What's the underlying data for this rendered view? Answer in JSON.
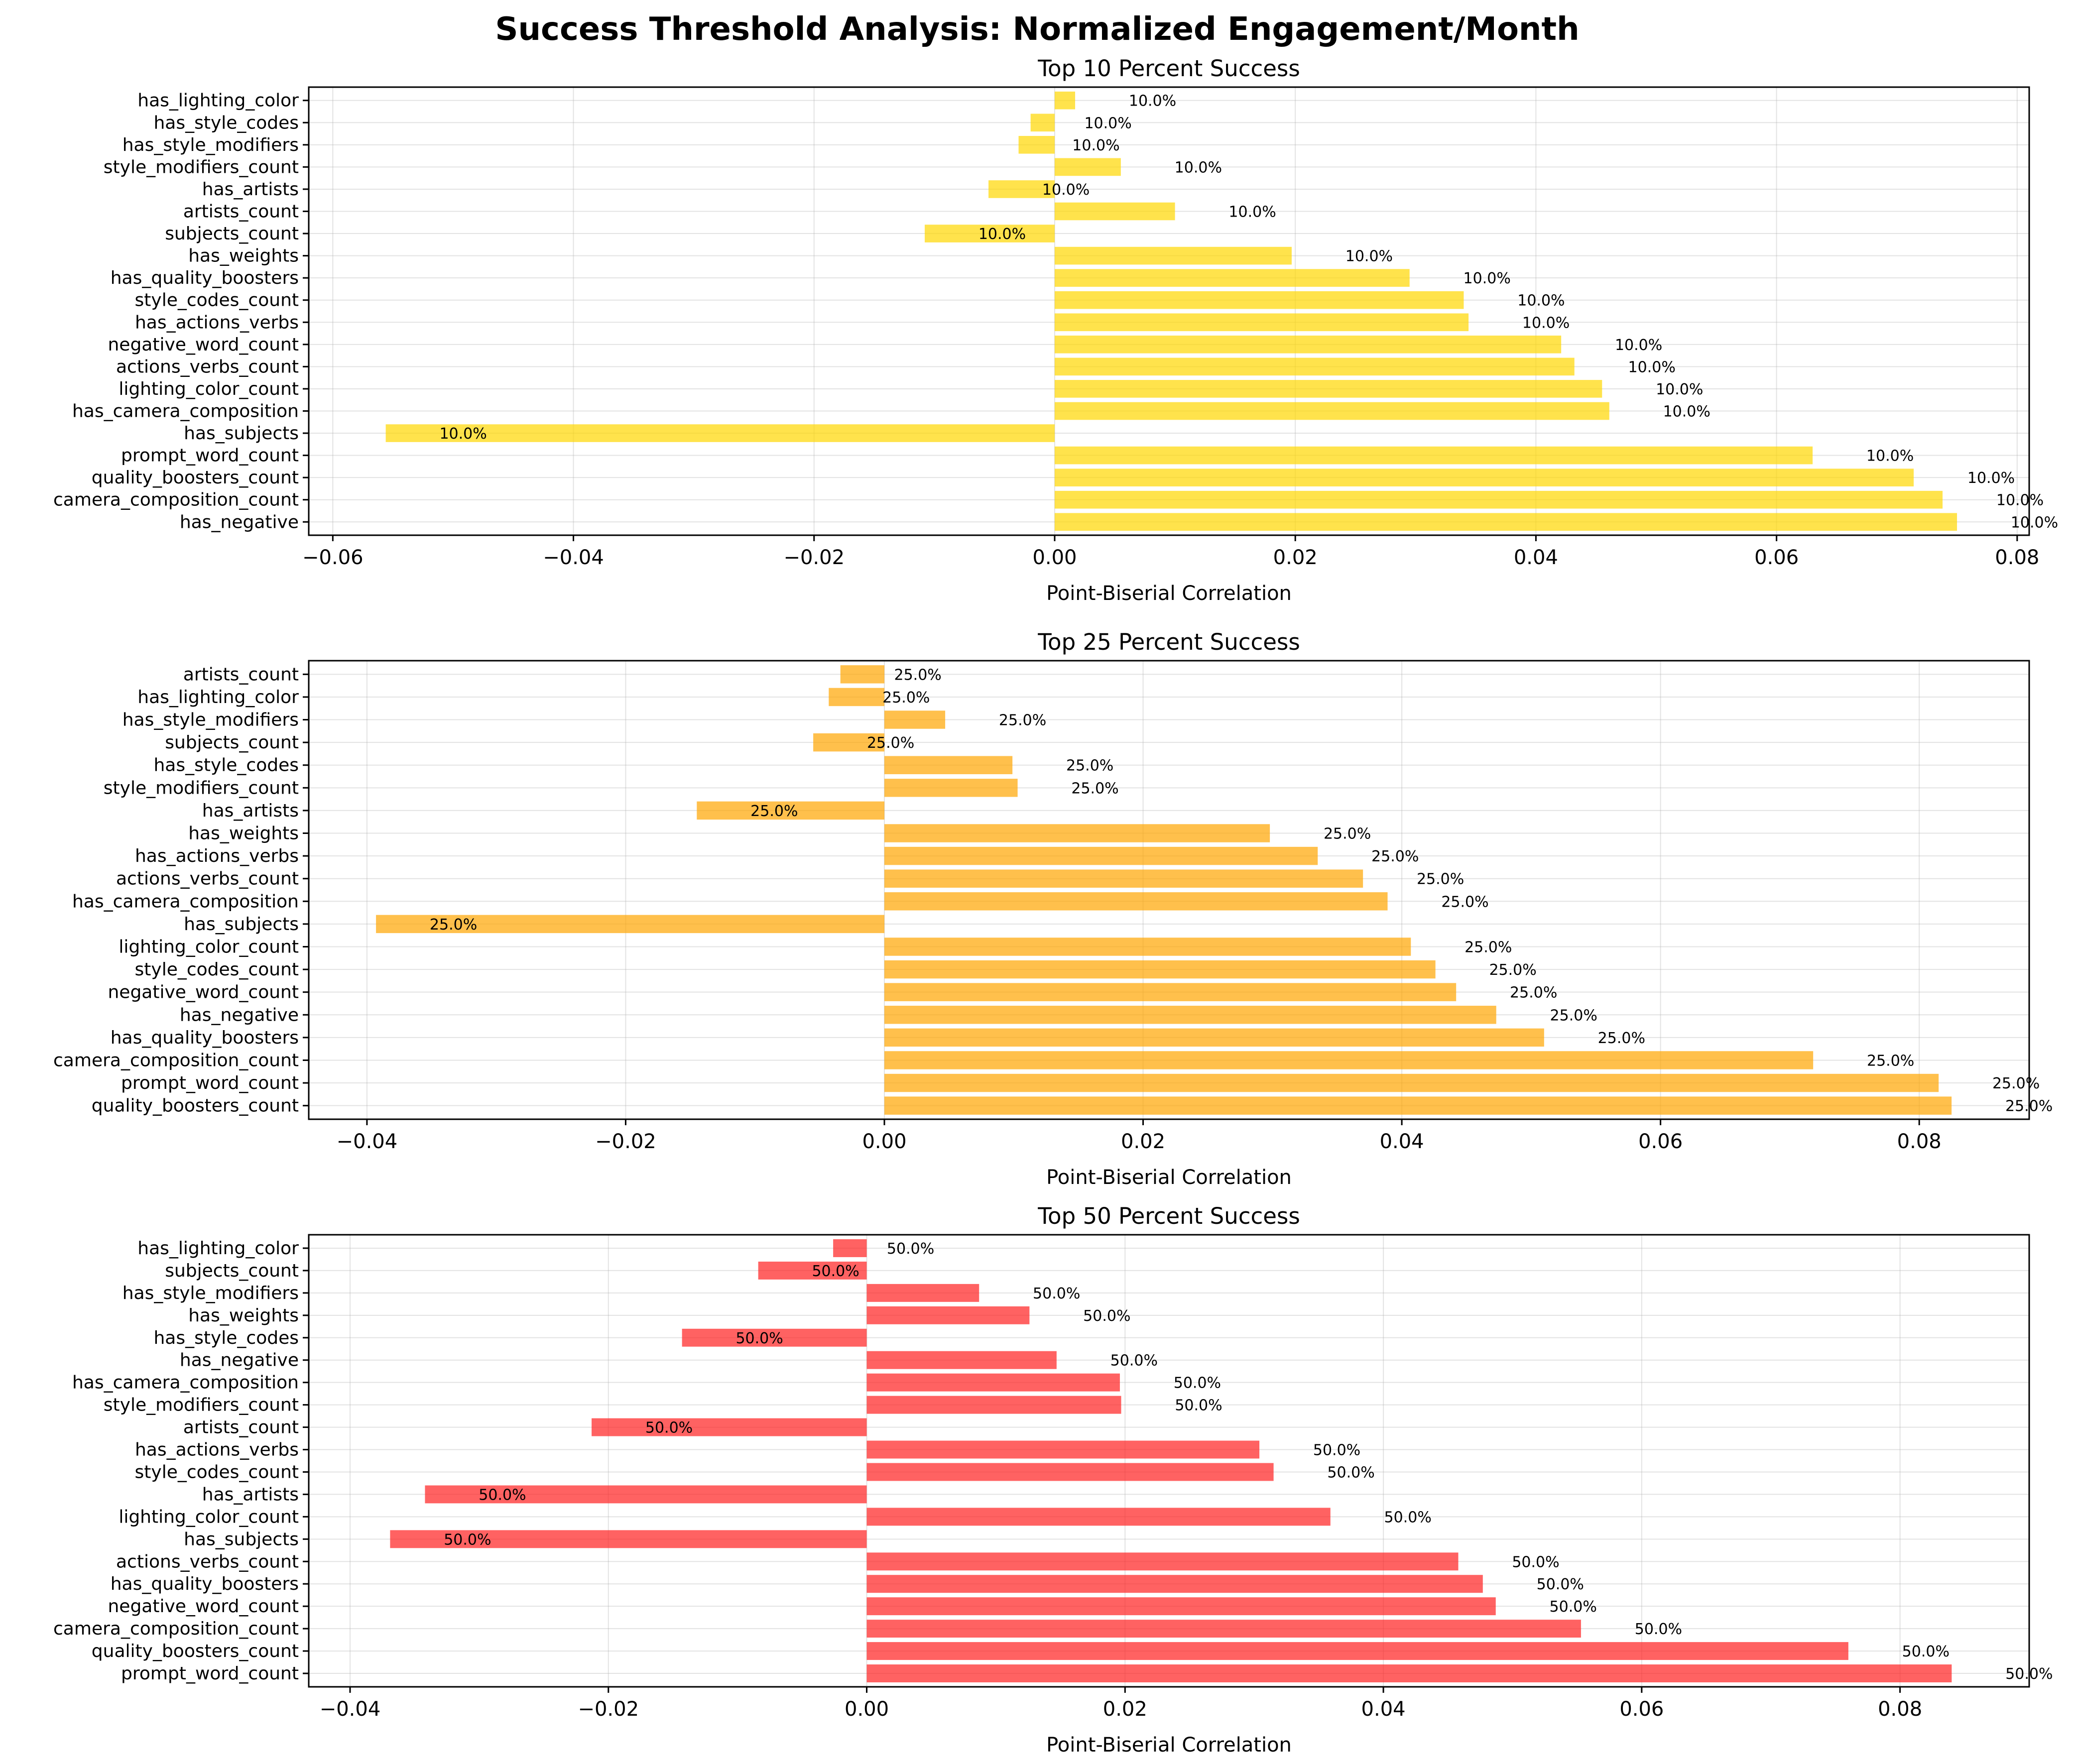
{
  "figure": {
    "title": "Success Threshold Analysis: Normalized Engagement/Month"
  },
  "chart_data": [
    {
      "type": "bar",
      "orientation": "horizontal",
      "title": "Top 10 Percent Success",
      "xlabel": "Point-Biserial Correlation",
      "ylabel": "",
      "xlim": [
        -0.062,
        0.081
      ],
      "xticks": [
        -0.06,
        -0.04,
        -0.02,
        0.0,
        0.02,
        0.04,
        0.06,
        0.08
      ],
      "xtick_labels": [
        "−0.06",
        "−0.04",
        "−0.02",
        "0.00",
        "0.02",
        "0.04",
        "0.06",
        "0.08"
      ],
      "grid": true,
      "color": "#FFD700",
      "categories": [
        "has_negative",
        "camera_composition_count",
        "quality_boosters_count",
        "prompt_word_count",
        "has_subjects",
        "has_camera_composition",
        "lighting_color_count",
        "actions_verbs_count",
        "negative_word_count",
        "has_actions_verbs",
        "style_codes_count",
        "has_quality_boosters",
        "has_weights",
        "subjects_count",
        "artists_count",
        "has_artists",
        "style_modifiers_count",
        "has_style_modifiers",
        "has_style_codes",
        "has_lighting_color"
      ],
      "values": [
        0.075,
        0.0738,
        0.0714,
        0.063,
        -0.0556,
        0.0461,
        0.0455,
        0.0432,
        0.0421,
        0.0344,
        0.034,
        0.0295,
        0.0197,
        -0.0108,
        0.01,
        -0.0055,
        0.0055,
        -0.003,
        -0.002,
        0.0017
      ],
      "data_labels": [
        "10.0%",
        "10.0%",
        "10.0%",
        "10.0%",
        "10.0%",
        "10.0%",
        "10.0%",
        "10.0%",
        "10.0%",
        "10.0%",
        "10.0%",
        "10.0%",
        "10.0%",
        "10.0%",
        "10.0%",
        "10.0%",
        "10.0%",
        "10.0%",
        "10.0%",
        "10.0%"
      ]
    },
    {
      "type": "bar",
      "orientation": "horizontal",
      "title": "Top 25 Percent Success",
      "xlabel": "Point-Biserial Correlation",
      "ylabel": "",
      "xlim": [
        -0.0445,
        0.0885
      ],
      "xticks": [
        -0.04,
        -0.02,
        0.0,
        0.02,
        0.04,
        0.06,
        0.08
      ],
      "xtick_labels": [
        "−0.04",
        "−0.02",
        "0.00",
        "0.02",
        "0.04",
        "0.06",
        "0.08"
      ],
      "grid": true,
      "color": "#FFA500",
      "categories": [
        "quality_boosters_count",
        "prompt_word_count",
        "camera_composition_count",
        "has_quality_boosters",
        "has_negative",
        "negative_word_count",
        "style_codes_count",
        "lighting_color_count",
        "has_subjects",
        "has_camera_composition",
        "actions_verbs_count",
        "has_actions_verbs",
        "has_weights",
        "has_artists",
        "style_modifiers_count",
        "has_style_codes",
        "subjects_count",
        "has_style_modifiers",
        "has_lighting_color",
        "artists_count"
      ],
      "values": [
        0.0825,
        0.0815,
        0.0718,
        0.051,
        0.0473,
        0.0442,
        0.0426,
        0.0407,
        -0.0393,
        0.0389,
        0.037,
        0.0335,
        0.0298,
        -0.0145,
        0.0103,
        0.0099,
        -0.0055,
        0.0047,
        -0.0043,
        -0.0034
      ],
      "data_labels": [
        "25.0%",
        "25.0%",
        "25.0%",
        "25.0%",
        "25.0%",
        "25.0%",
        "25.0%",
        "25.0%",
        "25.0%",
        "25.0%",
        "25.0%",
        "25.0%",
        "25.0%",
        "25.0%",
        "25.0%",
        "25.0%",
        "25.0%",
        "25.0%",
        "25.0%",
        "25.0%"
      ]
    },
    {
      "type": "bar",
      "orientation": "horizontal",
      "title": "Top 50 Percent Success",
      "xlabel": "Point-Biserial Correlation",
      "ylabel": "",
      "xlim": [
        -0.0432,
        0.09
      ],
      "xticks": [
        -0.04,
        -0.02,
        0.0,
        0.02,
        0.04,
        0.06,
        0.08
      ],
      "xtick_labels": [
        "−0.04",
        "−0.02",
        "0.00",
        "0.02",
        "0.04",
        "0.06",
        "0.08"
      ],
      "grid": true,
      "color": "#FF2020",
      "categories": [
        "prompt_word_count",
        "quality_boosters_count",
        "camera_composition_count",
        "negative_word_count",
        "has_quality_boosters",
        "actions_verbs_count",
        "has_subjects",
        "lighting_color_count",
        "has_artists",
        "style_codes_count",
        "has_actions_verbs",
        "artists_count",
        "style_modifiers_count",
        "has_camera_composition",
        "has_negative",
        "has_style_codes",
        "has_weights",
        "has_style_modifiers",
        "subjects_count",
        "has_lighting_color"
      ],
      "values": [
        0.084,
        0.076,
        0.0553,
        0.0487,
        0.0477,
        0.0458,
        -0.0369,
        0.0359,
        -0.0342,
        0.0315,
        0.0304,
        -0.0213,
        0.0197,
        0.0196,
        0.0147,
        -0.0143,
        0.0126,
        0.0087,
        -0.0084,
        -0.0026
      ],
      "data_labels": [
        "50.0%",
        "50.0%",
        "50.0%",
        "50.0%",
        "50.0%",
        "50.0%",
        "50.0%",
        "50.0%",
        "50.0%",
        "50.0%",
        "50.0%",
        "50.0%",
        "50.0%",
        "50.0%",
        "50.0%",
        "50.0%",
        "50.0%",
        "50.0%",
        "50.0%",
        "50.0%"
      ]
    }
  ]
}
